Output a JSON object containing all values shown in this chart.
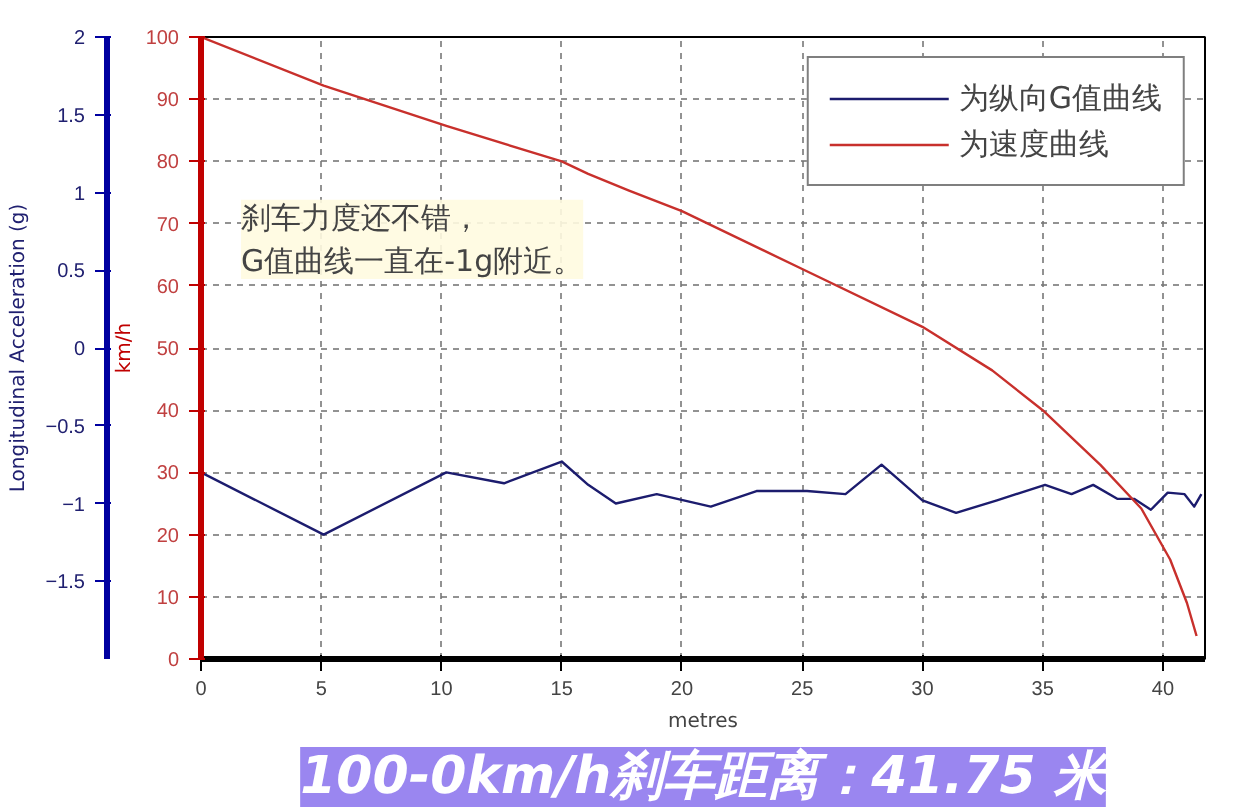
{
  "chart_data": {
    "type": "line",
    "title": "100-0km/h刹车距离：41.75 米",
    "xlabel": "metres",
    "ylabel": "km/h",
    "y2label": "Longitudinal Acceleration (g)",
    "annotations": [
      "刹车力度还不错，\nG值曲线一直在-1g附近。"
    ],
    "series": [
      {
        "name": "为纵向G值曲线",
        "color": "#1c1c6e",
        "axis": "y2",
        "x": [
          0,
          5.1,
          10.2,
          12.6,
          15,
          16.1,
          17.25,
          18.95,
          21.2,
          23.1,
          25.2,
          26.8,
          28.3,
          30,
          31.4,
          33.1,
          35.1,
          36.2,
          37.1,
          38.1,
          38.8,
          39.5,
          40.2,
          40.9,
          41.3,
          41.6
        ],
        "values": [
          -0.8,
          -1.2,
          -0.8,
          -0.87,
          -0.73,
          -0.88,
          -1.0,
          -0.94,
          -1.02,
          -0.92,
          -0.92,
          -0.94,
          -0.75,
          -0.98,
          -1.06,
          -0.98,
          -0.88,
          -0.94,
          -0.88,
          -0.97,
          -0.97,
          -1.04,
          -0.93,
          -0.94,
          -1.02,
          -0.94
        ]
      },
      {
        "name": "为速度曲线",
        "color": "#c8302c",
        "x": [
          0,
          5.1,
          10.2,
          15,
          16.1,
          17.8,
          20,
          25,
          30,
          32.9,
          35,
          37.4,
          39.1,
          40.3,
          41,
          41.4
        ],
        "values": [
          100,
          92.2,
          85.7,
          80,
          78,
          75.3,
          72,
          62.7,
          53.4,
          46.4,
          40,
          31.2,
          24.2,
          16,
          9,
          3.7
        ]
      }
    ],
    "xlim": [
      0,
      41.75
    ],
    "xticks": [
      0,
      5,
      10,
      15,
      20,
      25,
      30,
      35,
      40
    ],
    "ylim": [
      0,
      100
    ],
    "yticks": [
      0,
      10,
      20,
      30,
      40,
      50,
      60,
      70,
      80,
      90,
      100
    ],
    "y2lim": [
      -2,
      2
    ],
    "y2ticks": [
      -1.5,
      -1,
      -0.5,
      0,
      0.5,
      1,
      1.5,
      2
    ],
    "grid": true,
    "legend": "top right",
    "line_style": "solid"
  }
}
